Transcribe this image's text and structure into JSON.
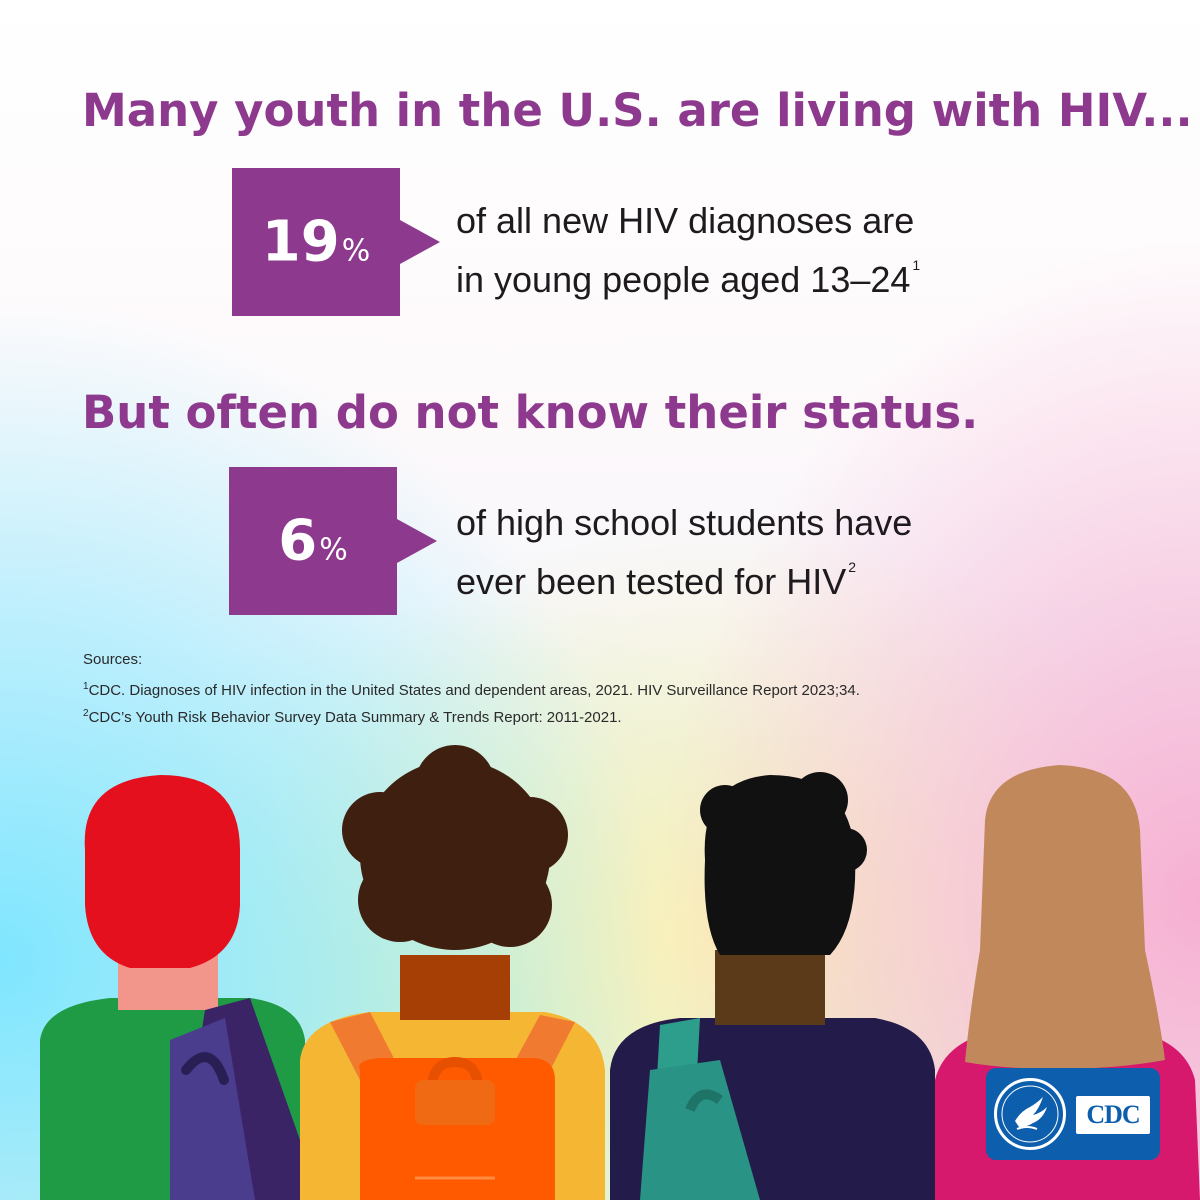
{
  "headline_1": "Many youth in the U.S. are living with HIV...",
  "headline_2": "But often do not know their status.",
  "stats": [
    {
      "value": "19",
      "unit": "%",
      "line1": "of all new HIV diagnoses are",
      "line2": "in young people aged 13–24",
      "footnote": "1"
    },
    {
      "value": "6",
      "unit": "%",
      "line1": "of high school students have",
      "line2": "ever been tested for HIV",
      "footnote": "2"
    }
  ],
  "sources": {
    "label": "Sources:",
    "items": [
      {
        "marker": "1",
        "text": "CDC. Diagnoses of HIV infection in the United States and dependent areas, 2021. HIV Surveillance Report 2023;34."
      },
      {
        "marker": "2",
        "text": "CDC’s Youth Risk Behavior Survey Data Summary & Trends Report: 2011-2021."
      }
    ]
  },
  "logo": {
    "text": "CDC",
    "icon": "hhs-eagle-seal-icon"
  },
  "colors": {
    "headline": "#8d3a8e",
    "stat_box": "#8d3a8e",
    "logo_blue": "#0d5fad"
  }
}
